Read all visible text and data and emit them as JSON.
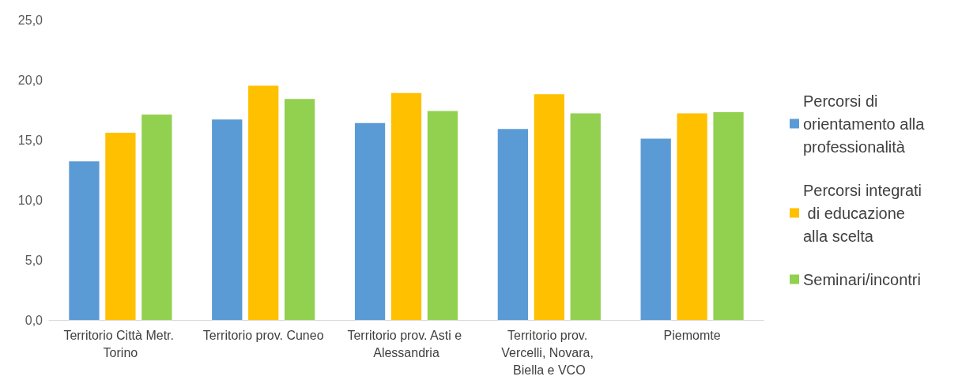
{
  "chart_data": {
    "type": "bar",
    "categories": [
      "Territorio Città Metr. Torino",
      "Territorio prov. Cuneo",
      "Territorio prov. Asti e Alessandria",
      "Territorio prov. Vercelli, Novara, Biella e VCO",
      "Piemomte"
    ],
    "series": [
      {
        "name": "Percorsi di orientamento alla professionalità",
        "color": "#5b9bd5",
        "values": [
          13.2,
          16.7,
          16.4,
          15.9,
          15.1
        ]
      },
      {
        "name": "Percorsi integrati di educazione alla scelta",
        "color": "#ffc000",
        "values": [
          15.6,
          19.5,
          18.9,
          18.8,
          17.2
        ]
      },
      {
        "name": "Seminari/incontri",
        "color": "#92d050",
        "values": [
          17.1,
          18.4,
          17.4,
          17.2,
          17.3
        ]
      }
    ],
    "ylim": [
      0,
      25
    ],
    "yticks": [
      {
        "value": 0,
        "label": "0,0"
      },
      {
        "value": 5,
        "label": "5,0"
      },
      {
        "value": 10,
        "label": "10,0"
      },
      {
        "value": 15,
        "label": "15,0"
      },
      {
        "value": 20,
        "label": "20,0"
      },
      {
        "value": 25,
        "label": "25,0"
      }
    ],
    "grid": false,
    "legend": "right"
  }
}
